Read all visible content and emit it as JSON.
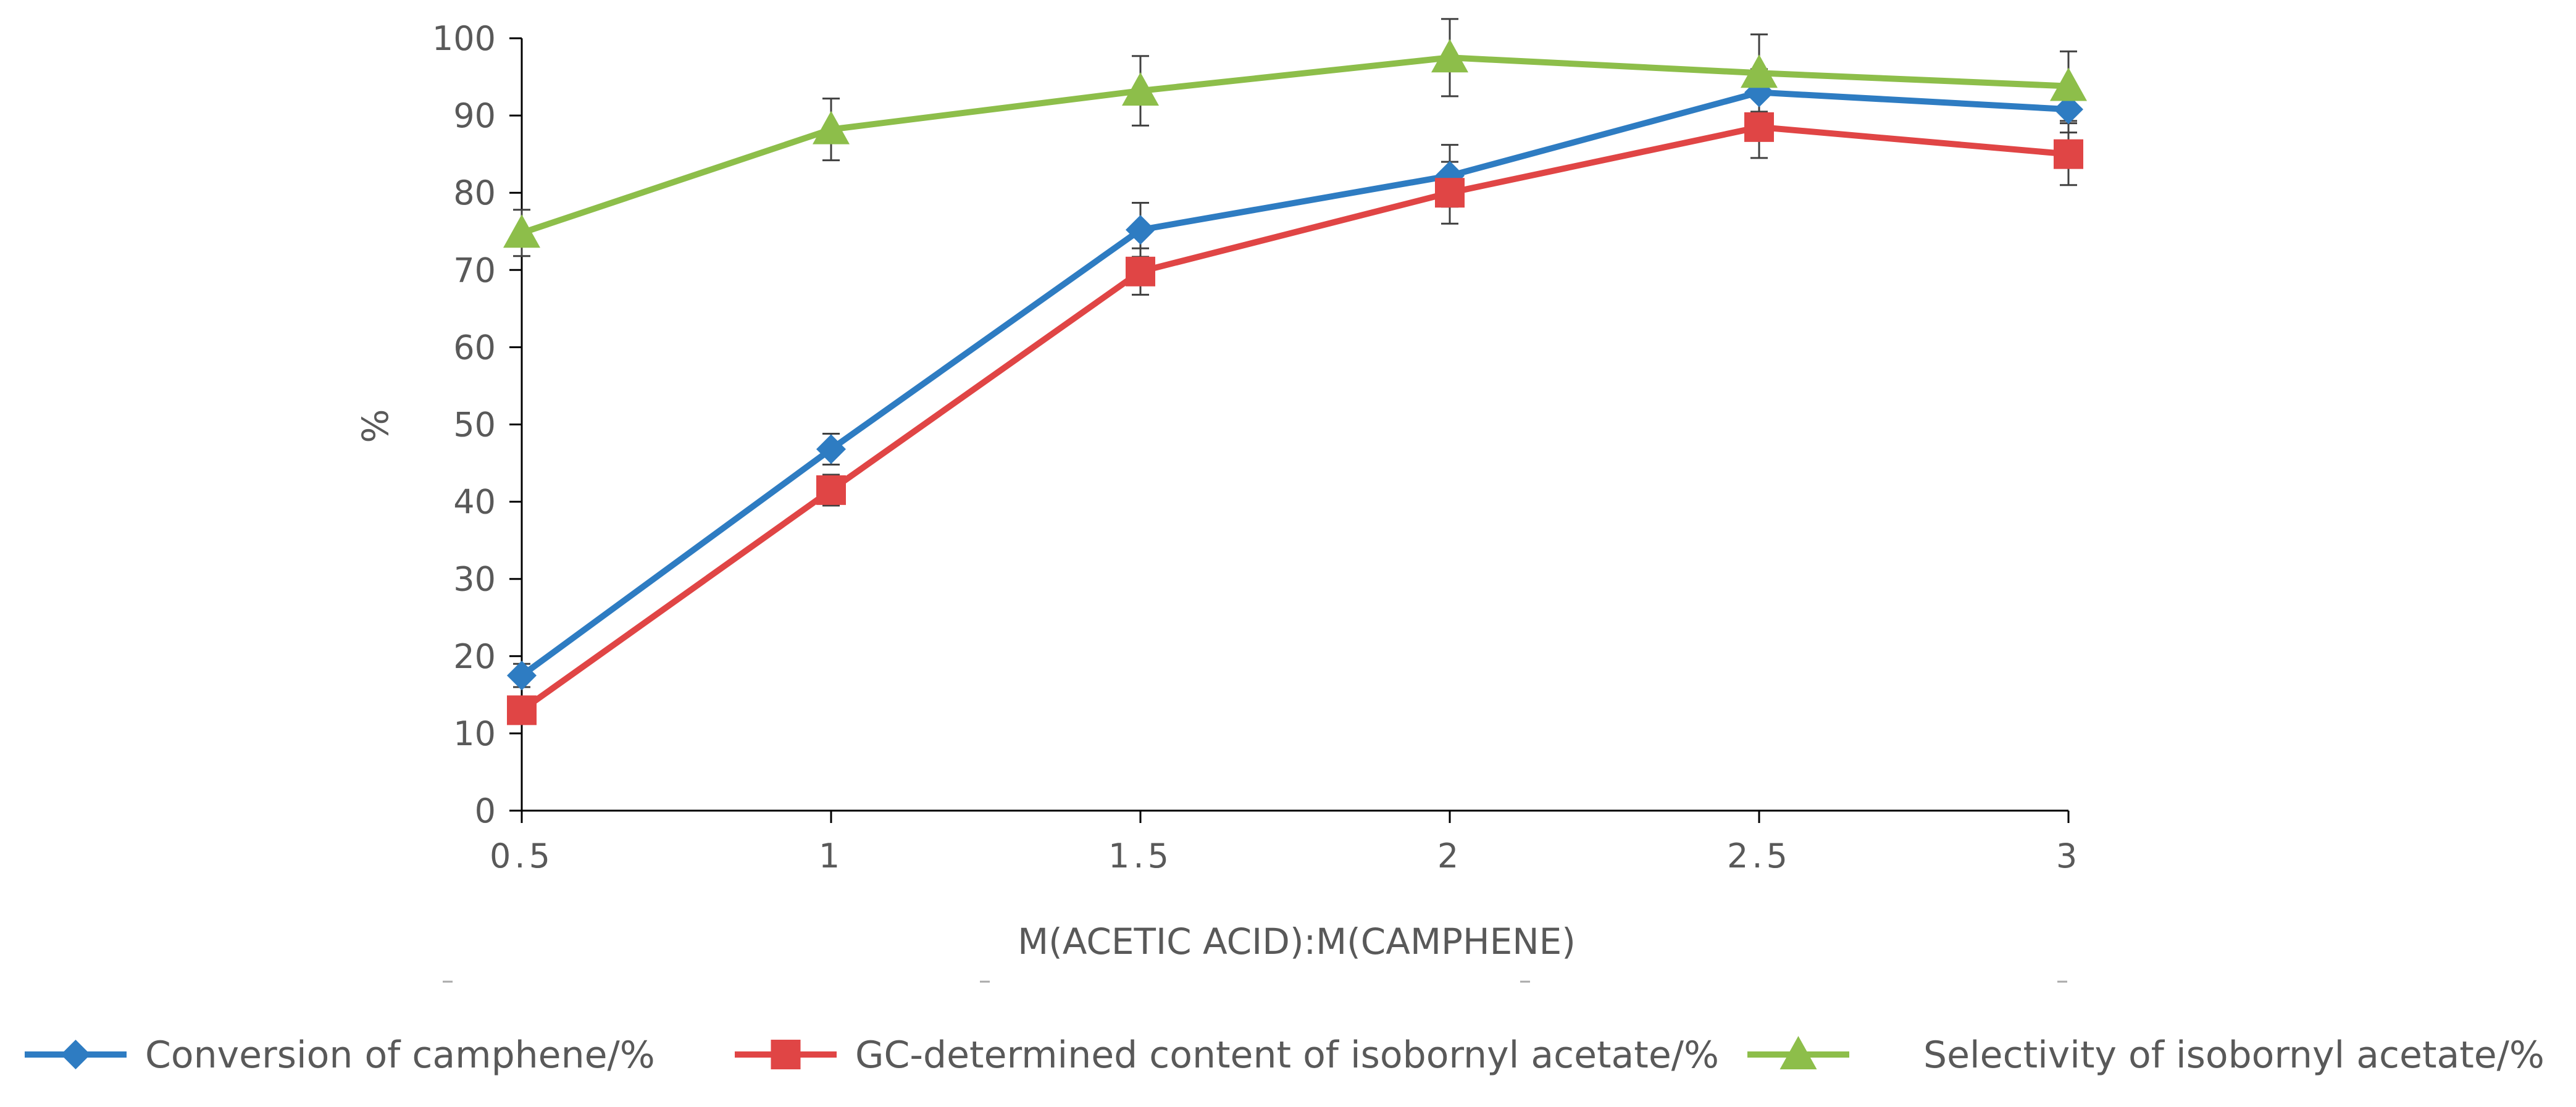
{
  "chart_data": {
    "type": "line",
    "title": "",
    "xlabel": "M(ACETIC ACID):M(CAMPHENE)",
    "ylabel": "%",
    "x": [
      0.5,
      1,
      1.5,
      2,
      2.5,
      3
    ],
    "x_tick_labels": [
      "0.5",
      "1",
      "1.5",
      "2",
      "2.5",
      "3"
    ],
    "ylim": [
      0,
      100
    ],
    "y_ticks": [
      0,
      10,
      20,
      30,
      40,
      50,
      60,
      70,
      80,
      90,
      100
    ],
    "grid": false,
    "legend_position": "bottom",
    "series": [
      {
        "name": "Conversion of camphene/%",
        "color": "#2E7CC2",
        "marker": "diamond",
        "values": [
          17.5,
          46.8,
          75.2,
          82.2,
          93.0,
          90.8
        ],
        "error": [
          1.5,
          2.0,
          3.5,
          4.0,
          3.0,
          3.0
        ]
      },
      {
        "name": "GC-determined content of isobornyl acetate/%",
        "color": "#E04545",
        "marker": "square",
        "values": [
          13.0,
          41.5,
          69.8,
          80.0,
          88.5,
          85.0
        ],
        "error": [
          1.5,
          2.0,
          3.0,
          4.0,
          4.0,
          4.0
        ]
      },
      {
        "name": "Selectivity of isobornyl acetate/%",
        "color": "#8DBE4A",
        "marker": "triangle",
        "values": [
          74.8,
          88.2,
          93.2,
          97.5,
          95.5,
          93.8
        ],
        "error": [
          3.0,
          4.0,
          4.5,
          5.0,
          5.0,
          4.5
        ]
      }
    ]
  }
}
